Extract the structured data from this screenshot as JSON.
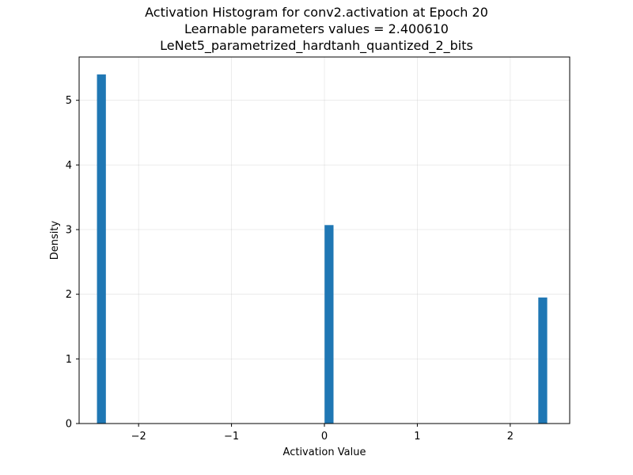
{
  "chart_data": {
    "type": "bar",
    "title_lines": [
      "Activation Histogram for conv2.activation at Epoch 20",
      "Learnable parameters values = 2.400610",
      "LeNet5_parametrized_hardtanh_quantized_2_bits"
    ],
    "xlabel": "Activation Value",
    "ylabel": "Density",
    "xlim": [
      -2.64,
      2.64
    ],
    "ylim": [
      0,
      5.67
    ],
    "xticks": [
      -2,
      -1,
      0,
      1,
      2
    ],
    "xtick_labels": [
      "−2",
      "−1",
      "0",
      "1",
      "2"
    ],
    "yticks": [
      0,
      1,
      2,
      3,
      4,
      5
    ],
    "ytick_labels": [
      "0",
      "1",
      "2",
      "3",
      "4",
      "5"
    ],
    "grid": true,
    "bar_color": "#1f77b4",
    "bin_width": 0.096,
    "bars": [
      {
        "x": -2.4,
        "value": 5.4
      },
      {
        "x": 0.05,
        "value": 3.07
      },
      {
        "x": 2.35,
        "value": 1.95
      }
    ]
  }
}
